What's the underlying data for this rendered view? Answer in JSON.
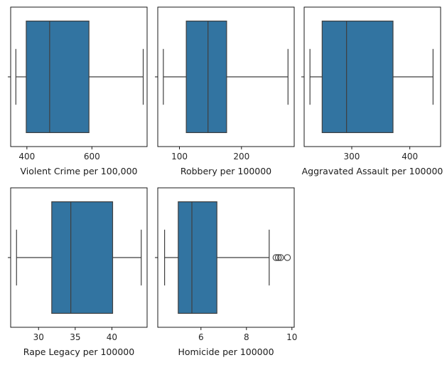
{
  "chart_data": [
    {
      "type": "boxplot",
      "xlabel": "Violent Crime per 100,000",
      "xlim": [
        350,
        770
      ],
      "xticks": [
        400,
        600
      ],
      "xtick_labels": [
        "400",
        "600"
      ],
      "box": {
        "whisker_low": 366,
        "q1": 398,
        "median": 470,
        "q3": 591,
        "whisker_high": 758
      },
      "outliers": [],
      "color": "#3274a1"
    },
    {
      "type": "boxplot",
      "xlabel": "Robbery per 100000",
      "xlim": [
        65,
        285
      ],
      "xticks": [
        100,
        200
      ],
      "xtick_labels": [
        "100",
        "200"
      ],
      "box": {
        "whisker_low": 74,
        "q1": 111,
        "median": 146,
        "q3": 176,
        "whisker_high": 275
      },
      "outliers": [],
      "color": "#3274a1"
    },
    {
      "type": "boxplot",
      "xlabel": "Aggravated Assault per 100000",
      "xlim": [
        218,
        453
      ],
      "xticks": [
        300,
        400
      ],
      "xtick_labels": [
        "300",
        "400"
      ],
      "box": {
        "whisker_low": 228,
        "q1": 249,
        "median": 291,
        "q3": 371,
        "whisker_high": 440
      },
      "outliers": [],
      "color": "#3274a1"
    },
    {
      "type": "boxplot",
      "xlabel": "Rape Legacy per 100000",
      "xlim": [
        26.2,
        44.8
      ],
      "xticks": [
        30,
        35,
        40
      ],
      "xtick_labels": [
        "30",
        "35",
        "40"
      ],
      "box": {
        "whisker_low": 27.0,
        "q1": 31.8,
        "median": 34.4,
        "q3": 40.1,
        "whisker_high": 44.0
      },
      "outliers": [],
      "color": "#3274a1"
    },
    {
      "type": "boxplot",
      "xlabel": "Homicide per 100000",
      "xlim": [
        4.1,
        10.1
      ],
      "xticks": [
        6,
        8,
        10
      ],
      "xtick_labels": [
        "6",
        "8",
        "10"
      ],
      "box": {
        "whisker_low": 4.4,
        "q1": 5.0,
        "median": 5.6,
        "q3": 6.7,
        "whisker_high": 9.0
      },
      "outliers": [
        9.3,
        9.4,
        9.5,
        9.8
      ],
      "color": "#3274a1"
    }
  ]
}
